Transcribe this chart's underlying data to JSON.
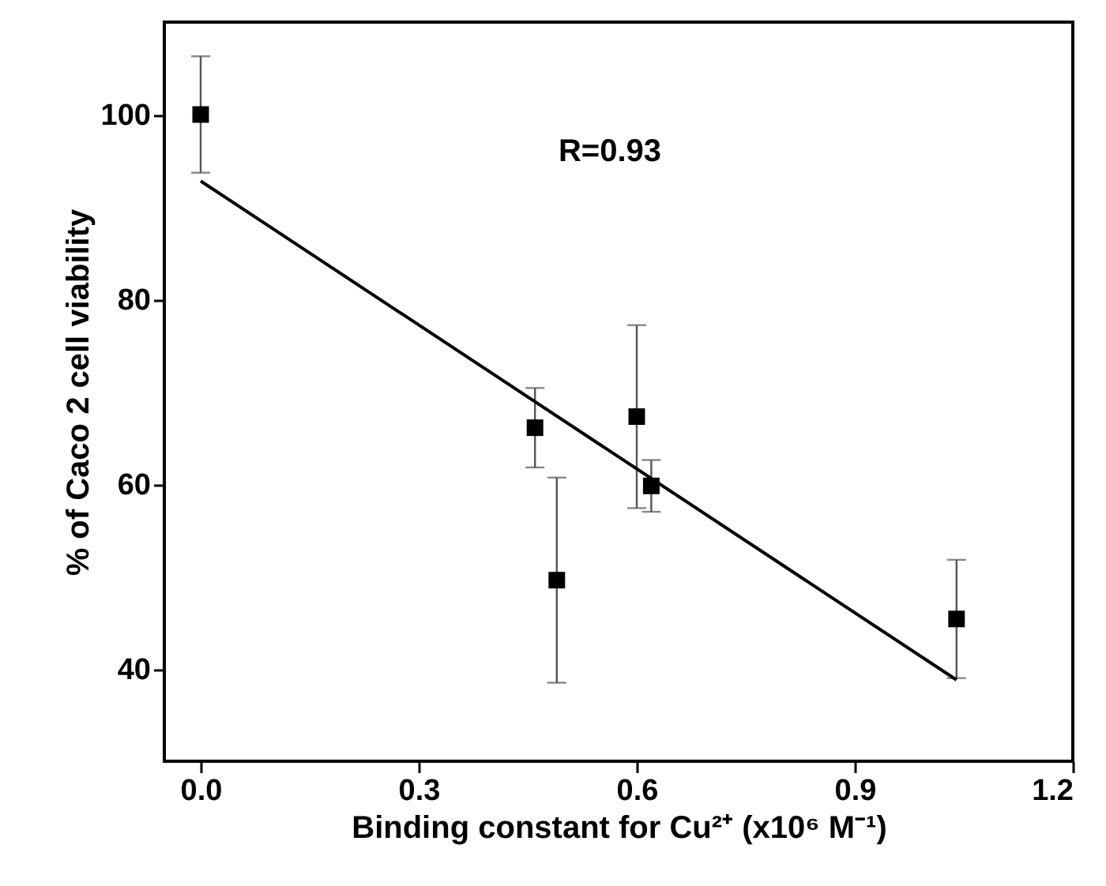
{
  "chart_data": {
    "type": "scatter",
    "xlabel": "Binding constant for Cu²⁺ (x10⁶ M⁻¹)",
    "ylabel": "% of Caco 2 cell viability",
    "annotations": [
      "R=0.93"
    ],
    "xlim": [
      -0.05,
      1.2
    ],
    "ylim": [
      30,
      110
    ],
    "xticks": [
      {
        "value": 0,
        "label": "0.0"
      },
      {
        "value": 0.3,
        "label": "0.3"
      },
      {
        "value": 0.6,
        "label": "0.6"
      },
      {
        "value": 0.9,
        "label": "0.9"
      },
      {
        "value": 1.2,
        "label": "1.2"
      }
    ],
    "yticks": [
      40,
      60,
      80,
      100
    ],
    "grid": false,
    "series": [
      {
        "marker": "square",
        "color": "#000000",
        "x": [
          0,
          0.46,
          0.49,
          0.6,
          0.62,
          1.04
        ],
        "values": [
          100,
          66.1,
          49.6,
          67.3,
          59.8,
          45.4
        ],
        "errors": [
          6.3,
          4.3,
          11.1,
          9.9,
          2.8,
          6.4
        ]
      },
      {
        "type": "line",
        "color": "#000000",
        "x": [
          0,
          1.04
        ],
        "values": [
          92.8,
          38.8
        ]
      }
    ]
  }
}
